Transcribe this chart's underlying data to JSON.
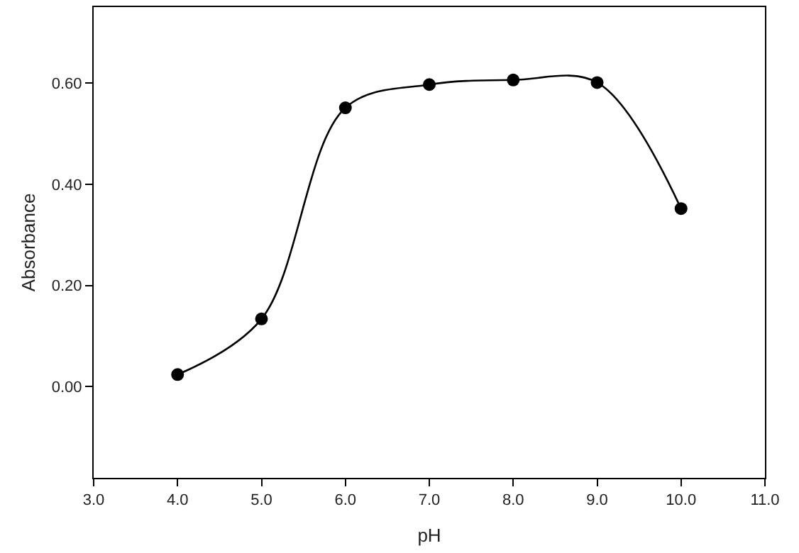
{
  "chart_data": {
    "type": "line",
    "xlabel": "pH",
    "ylabel": "Absorbance",
    "x": [
      4.0,
      5.0,
      6.0,
      7.0,
      8.0,
      9.0,
      10.0
    ],
    "series": [
      {
        "color": "#000000",
        "values": [
          0.024,
          0.134,
          0.551,
          0.597,
          0.606,
          0.601,
          0.352
        ]
      }
    ],
    "xlim": [
      3.0,
      11.0
    ],
    "xticks": [
      {
        "value": 3,
        "label": "3.0"
      },
      {
        "value": 4,
        "label": "4.0"
      },
      {
        "value": 5,
        "label": "5.0"
      },
      {
        "value": 6,
        "label": "6.0"
      },
      {
        "value": 7,
        "label": "7.0"
      },
      {
        "value": 8,
        "label": "8.0"
      },
      {
        "value": 9,
        "label": "9.0"
      },
      {
        "value": 10,
        "label": "10.0"
      },
      {
        "value": 11,
        "label": "11.0"
      }
    ],
    "ylim": [
      -0.18,
      0.75
    ],
    "yticks": [
      {
        "value": 0,
        "label": "0.00"
      },
      {
        "value": 0.2,
        "label": "0.20"
      },
      {
        "value": 0.4,
        "label": "0.40"
      },
      {
        "value": 0.6,
        "label": "0.60"
      }
    ],
    "marker": "circle",
    "line_style": "solid",
    "legend": false
  }
}
